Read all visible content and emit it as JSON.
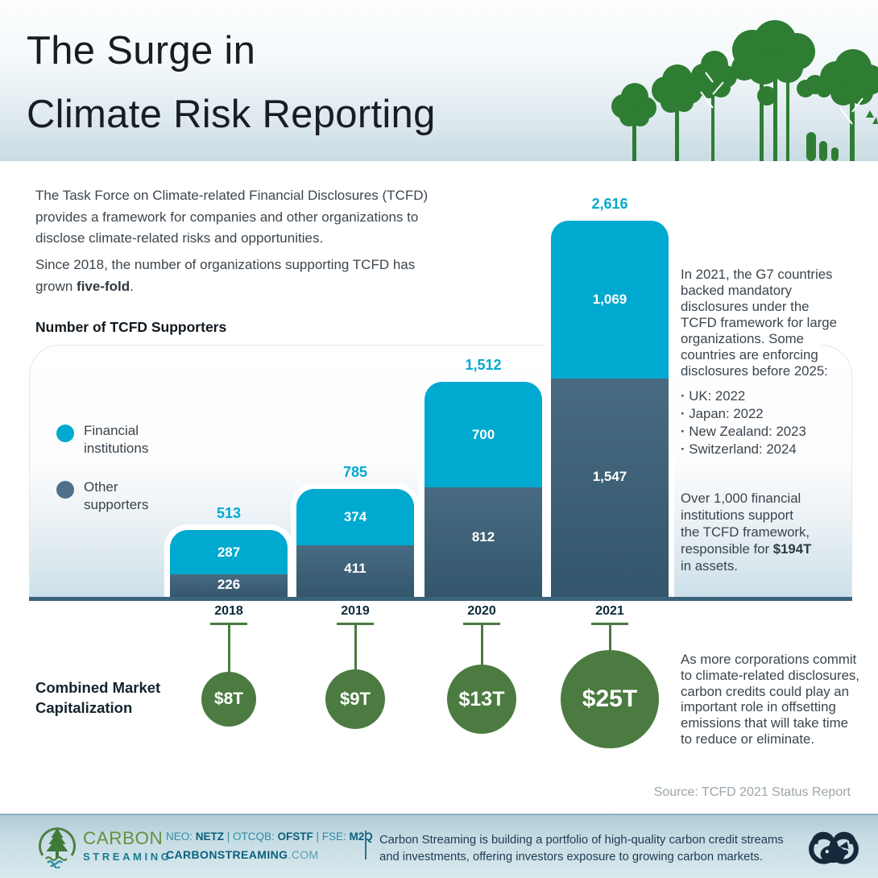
{
  "header": {
    "title": "The Surge in\nClimate Risk Reporting"
  },
  "intro": {
    "p1": "The Task Force on Climate-related Financial Disclosures (TCFD)\nprovides a framework for companies and other organizations to\ndisclose climate-related risks and opportunities.",
    "p2_prefix": "Since 2018, the number of organizations supporting TCFD has\ngrown ",
    "p2_bold": "five-fold",
    "p2_suffix": "."
  },
  "chart": {
    "title": "Number of TCFD Supporters",
    "legend": [
      {
        "label": "Financial\ninstitutions",
        "color": "#00a9cf"
      },
      {
        "label": "Other\nsupporters",
        "color": "#4f7089"
      }
    ]
  },
  "chart_data": {
    "type": "bar",
    "subtype": "stacked-bar-with-bubbles",
    "title": "Number of TCFD Supporters",
    "categories": [
      "2018",
      "2019",
      "2020",
      "2021"
    ],
    "series": [
      {
        "name": "Financial institutions",
        "color": "#00a9cf",
        "values": [
          287,
          374,
          700,
          1069
        ],
        "labels": [
          "287",
          "374",
          "700",
          "1,069"
        ]
      },
      {
        "name": "Other supporters",
        "color": "#486b81",
        "values": [
          226,
          411,
          812,
          1547
        ],
        "labels": [
          "226",
          "411",
          "812",
          "1,547"
        ]
      }
    ],
    "totals": {
      "values": [
        513,
        785,
        1512,
        2616
      ],
      "labels": [
        "513",
        "785",
        "1,512",
        "2,616"
      ],
      "color": "#00a9cf"
    },
    "bubbles": {
      "label": "Combined Market Capitalization",
      "unit": "trillion USD",
      "values": [
        8,
        9,
        13,
        25
      ],
      "labels": [
        "$8T",
        "$9T",
        "$13T",
        "$25T"
      ],
      "color": "#4b7b40"
    },
    "legend_position": "left",
    "grid": false
  },
  "annotations": {
    "g7": "In 2021, the G7 countries\nbacked mandatory\ndisclosures under the\nTCFD framework for large\norganizations. Some\ncountries are enforcing\ndisclosures before 2025:",
    "g7_bullets": [
      "UK: 2022",
      "Japan: 2022",
      "New Zealand: 2023",
      "Switzerland: 2024"
    ],
    "fi_prefix": "Over 1,000 financial\ninstitutions support\nthe TCFD framework,\nresponsible for ",
    "fi_bold": "$194T",
    "fi_suffix": "\nin assets.",
    "market_label": "Combined Market\nCapitalization",
    "credits": "As more corporations commit\nto climate-related disclosures,\ncarbon credits could play an\nimportant role in offsetting\nemissions that will take time\nto reduce or eliminate.",
    "source": "Source: TCFD 2021 Status Report"
  },
  "footer": {
    "brand_line1": "CARBON",
    "brand_line2": "STREAMING",
    "tickers": [
      {
        "label": "NEO: ",
        "symbol": "NETZ"
      },
      {
        "label": " | OTCQB: ",
        "symbol": "OFSTF"
      },
      {
        "label": " | FSE: ",
        "symbol": "M2Q"
      }
    ],
    "website_bold": "CARBONSTREAMING",
    "website_light": ".COM",
    "description": "Carbon Streaming is building a portfolio of high-quality carbon credit streams\nand investments, offering investors exposure to growing carbon markets.",
    "brand_green": "#64913f",
    "brand_teal": "#1b7a94"
  }
}
